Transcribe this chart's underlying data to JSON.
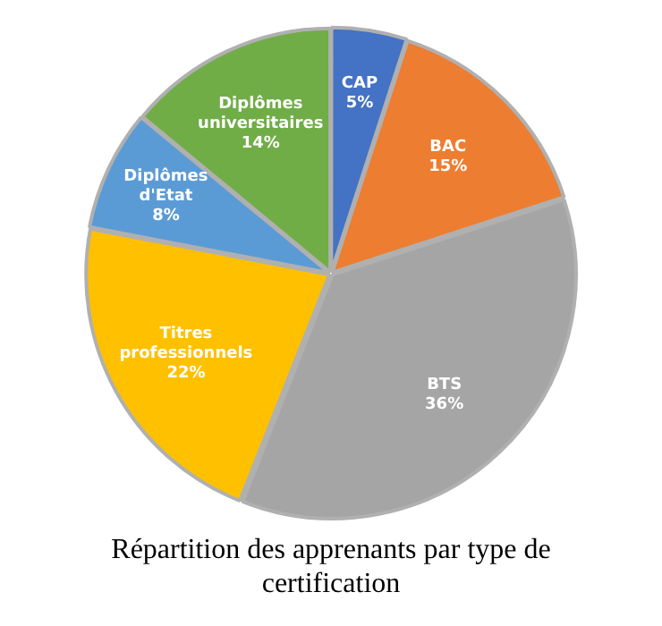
{
  "chart_data": {
    "type": "pie",
    "title": "Répartition des apprenants par type de certification",
    "categories": [
      "CAP",
      "BAC",
      "BTS",
      "Titres professionnels",
      "Diplômes d'Etat",
      "Diplômes universitaires"
    ],
    "values": [
      5,
      15,
      36,
      22,
      8,
      14
    ],
    "colors": [
      "#4472c4",
      "#ed7d31",
      "#a5a5a5",
      "#ffc000",
      "#5b9bd5",
      "#70ad47"
    ],
    "value_labels": [
      "5%",
      "15%",
      "36%",
      "22%",
      "8%",
      "14%"
    ],
    "legend": false
  }
}
